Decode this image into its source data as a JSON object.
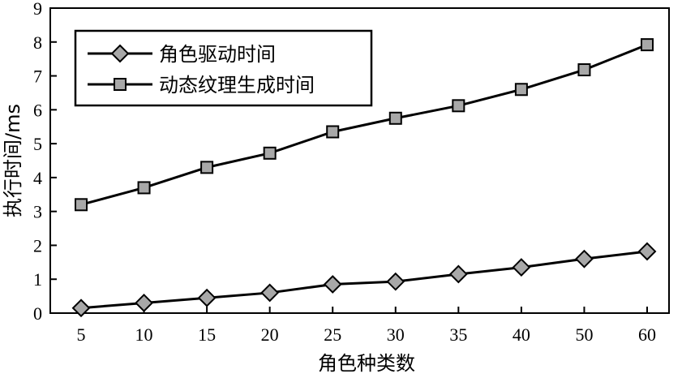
{
  "chart_data": {
    "type": "line",
    "categories": [
      "5",
      "10",
      "15",
      "20",
      "25",
      "30",
      "35",
      "40",
      "50",
      "60"
    ],
    "xlabel": "角色种类数",
    "ylabel": "执行时间/ms",
    "ylim": [
      0,
      9
    ],
    "yticks": [
      "0",
      "1",
      "2",
      "3",
      "4",
      "5",
      "6",
      "7",
      "8",
      "9"
    ],
    "grid": false,
    "legend_position": "top-left",
    "series": [
      {
        "name": "角色驱动时间",
        "marker": "diamond",
        "values": [
          0.15,
          0.3,
          0.45,
          0.6,
          0.85,
          0.93,
          1.15,
          1.35,
          1.6,
          1.82
        ]
      },
      {
        "name": "动态纹理生成时间",
        "marker": "square",
        "values": [
          3.2,
          3.7,
          4.3,
          4.72,
          5.35,
          5.75,
          6.12,
          6.6,
          7.18,
          7.92
        ]
      }
    ],
    "colors": {
      "line": "#000000",
      "marker_fill": "#a8a8a8",
      "marker_stroke": "#000000"
    }
  }
}
